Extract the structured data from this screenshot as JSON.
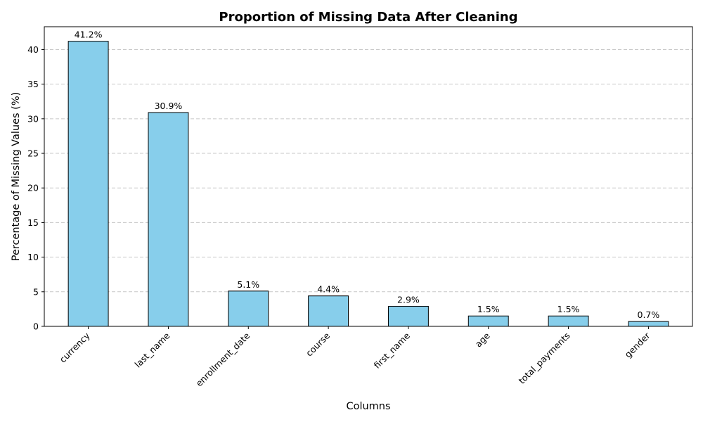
{
  "chart_data": {
    "type": "bar",
    "title": "Proportion of Missing Data After Cleaning",
    "xlabel": "Columns",
    "ylabel": "Percentage of Missing Values (%)",
    "categories": [
      "currency",
      "last_name",
      "enrollment_date",
      "course",
      "first_name",
      "age",
      "total_payments",
      "gender"
    ],
    "values": [
      41.2,
      30.9,
      5.1,
      4.4,
      2.9,
      1.5,
      1.5,
      0.7
    ],
    "data_labels": [
      "41.2%",
      "30.9%",
      "5.1%",
      "4.4%",
      "2.9%",
      "1.5%",
      "1.5%",
      "0.7%"
    ],
    "yticks": [
      0,
      5,
      10,
      15,
      20,
      25,
      30,
      35,
      40
    ],
    "ylim": [
      0,
      43.3
    ],
    "grid": "y-axis, dashed",
    "legend": "none",
    "bar_color": "#87ceeb",
    "edge_color": "#000000",
    "grid_color": "#c8c8c8"
  }
}
